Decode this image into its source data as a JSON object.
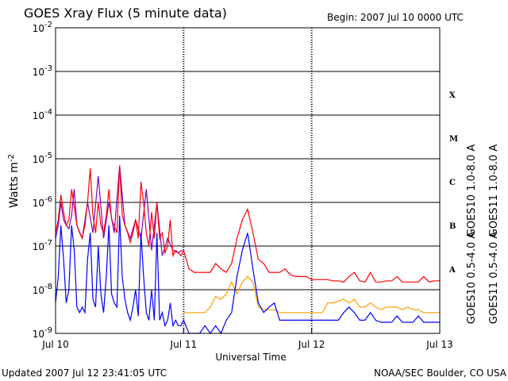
{
  "header": {
    "title": "GOES Xray Flux (5 minute data)",
    "begin": "Begin:  2007 Jul 10 0000 UTC"
  },
  "footer": {
    "updated": "Updated 2007 Jul 12 23:41:05 UTC",
    "source": "NOAA/SEC Boulder, CO USA"
  },
  "chart_data": {
    "type": "line",
    "title": "GOES Xray Flux (5 minute data)",
    "xlabel": "Universal Time",
    "ylabel": "Watts m",
    "ylabel_sup": "-2",
    "yscale": "log",
    "ylim": [
      1e-09,
      0.01
    ],
    "xlim_hours": [
      0,
      72
    ],
    "y_ticks": [
      {
        "base": "10",
        "exp": "-9",
        "value": 1e-09
      },
      {
        "base": "10",
        "exp": "-8",
        "value": 1e-08
      },
      {
        "base": "10",
        "exp": "-7",
        "value": 1e-07
      },
      {
        "base": "10",
        "exp": "-6",
        "value": 1e-06
      },
      {
        "base": "10",
        "exp": "-5",
        "value": 1e-05
      },
      {
        "base": "10",
        "exp": "-4",
        "value": 0.0001
      },
      {
        "base": "10",
        "exp": "-3",
        "value": 0.001
      },
      {
        "base": "10",
        "exp": "-2",
        "value": 0.01
      }
    ],
    "x_ticks": [
      {
        "label": "Jul 10",
        "hour": 0
      },
      {
        "label": "Jul 11",
        "hour": 24
      },
      {
        "label": "Jul 12",
        "hour": 48
      },
      {
        "label": "Jul 13",
        "hour": 72
      }
    ],
    "flare_classes": [
      {
        "label": "A",
        "value": 3e-08
      },
      {
        "label": "B",
        "value": 3e-07
      },
      {
        "label": "C",
        "value": 3e-06
      },
      {
        "label": "M",
        "value": 3e-05
      },
      {
        "label": "X",
        "value": 0.0003
      }
    ],
    "grid": true,
    "colors": {
      "goes10_long": "#8000c0",
      "goes11_long": "#ff0000",
      "goes10_short": "#ffa000",
      "goes11_short": "#0000ff"
    },
    "series": [
      {
        "name": "GOES10 1.0-8.0 A",
        "color": "#8000c0",
        "x": [
          0,
          0.5,
          1,
          1.5,
          2,
          2.5,
          3,
          3.5,
          4,
          5,
          6,
          7,
          8,
          9,
          10,
          11,
          12,
          13,
          14,
          15,
          16,
          17,
          18,
          19,
          20,
          21,
          22,
          23,
          23.7
        ],
        "y": [
          1.5e-07,
          3e-07,
          1e-06,
          4e-07,
          3e-07,
          2.5e-07,
          5e-07,
          2e-06,
          3e-07,
          1.5e-07,
          1e-06,
          2e-07,
          4e-06,
          1.5e-07,
          1e-06,
          2e-07,
          7e-06,
          3e-07,
          1.5e-07,
          4e-07,
          1.5e-07,
          2e-06,
          8e-08,
          1e-06,
          6e-08,
          1.5e-07,
          8e-08,
          7e-08,
          8e-08
        ]
      },
      {
        "name": "GOES11 1.0-8.0 A",
        "color": "#ff0000",
        "x": [
          0,
          0.5,
          1,
          1.5,
          2,
          2.5,
          3,
          3.5,
          4,
          4.5,
          5,
          5.5,
          6,
          6.5,
          7,
          7.5,
          8,
          8.5,
          9,
          9.5,
          10,
          10.5,
          11,
          11.5,
          12,
          12.5,
          13,
          13.5,
          14,
          14.5,
          15,
          15.5,
          16,
          16.5,
          17,
          17.5,
          18,
          18.5,
          19,
          19.5,
          20,
          20.5,
          21,
          21.5,
          22,
          22.5,
          23,
          23.5,
          24,
          25,
          26,
          27,
          28,
          29,
          30,
          31,
          32,
          33,
          34,
          35,
          36,
          37,
          38,
          39,
          40,
          41,
          42,
          43,
          44,
          45,
          46,
          47,
          48,
          49,
          50,
          51,
          52,
          53,
          54,
          55,
          56,
          57,
          58,
          59,
          60,
          61,
          62,
          63,
          64,
          65,
          66,
          67,
          68,
          69,
          70,
          71,
          72
        ],
        "y": [
          2e-07,
          4e-07,
          1.5e-06,
          6e-07,
          3e-07,
          4e-07,
          2e-06,
          8e-07,
          3e-07,
          2e-07,
          1.5e-07,
          3e-07,
          1e-06,
          6e-06,
          5e-07,
          2e-07,
          1e-06,
          3e-07,
          2e-07,
          5e-07,
          2e-06,
          4e-07,
          3e-07,
          2e-07,
          7e-06,
          5e-07,
          3e-07,
          2e-07,
          1.2e-07,
          2e-07,
          4e-07,
          1.5e-07,
          3e-06,
          1e-06,
          2e-07,
          1e-07,
          6e-07,
          1.5e-07,
          1e-06,
          1.5e-07,
          2e-07,
          7e-08,
          1e-07,
          4e-07,
          6e-08,
          8e-08,
          7e-08,
          6e-08,
          8e-08,
          3e-08,
          2.5e-08,
          2.5e-08,
          2.5e-08,
          2.5e-08,
          4e-08,
          3e-08,
          2.5e-08,
          4e-08,
          1.5e-07,
          4e-07,
          7e-07,
          2e-07,
          5e-08,
          4e-08,
          2.5e-08,
          2.5e-08,
          2.5e-08,
          3e-08,
          2.2e-08,
          2e-08,
          2e-08,
          2e-08,
          1.7e-08,
          1.7e-08,
          1.7e-08,
          1.7e-08,
          1.6e-08,
          1.6e-08,
          1.5e-08,
          2e-08,
          2.5e-08,
          1.6e-08,
          1.5e-08,
          2.5e-08,
          1.5e-08,
          1.5e-08,
          1.6e-08,
          1.6e-08,
          2e-08,
          1.5e-08,
          1.5e-08,
          1.5e-08,
          1.5e-08,
          2e-08,
          1.5e-08,
          1.6e-08,
          1.6e-08
        ]
      },
      {
        "name": "GOES10 0.5-4.0 A",
        "color": "#ffa000",
        "x": [
          24,
          25,
          26,
          27,
          28,
          29,
          30,
          31,
          32,
          33,
          34,
          35,
          36,
          37,
          38,
          39,
          40,
          41,
          42,
          43,
          44,
          45,
          46,
          47,
          48,
          49,
          50,
          51,
          52,
          53,
          54,
          55,
          56,
          57,
          58,
          59,
          60,
          61,
          62,
          63,
          64,
          65,
          66,
          67,
          68,
          69,
          70,
          71,
          72
        ],
        "y": [
          3e-09,
          3e-09,
          3e-09,
          3e-09,
          3e-09,
          4e-09,
          7e-09,
          6e-09,
          8e-09,
          1.5e-08,
          8e-09,
          1.5e-08,
          2e-08,
          1.5e-08,
          4e-09,
          3.5e-09,
          3.5e-09,
          3.5e-09,
          3e-09,
          3e-09,
          3e-09,
          3e-09,
          3e-09,
          3e-09,
          3e-09,
          3e-09,
          3e-09,
          5e-09,
          5e-09,
          5.5e-09,
          6e-09,
          5e-09,
          6e-09,
          4e-09,
          4e-09,
          5e-09,
          4e-09,
          3.5e-09,
          4e-09,
          4e-09,
          4e-09,
          3.5e-09,
          4e-09,
          3.5e-09,
          3.5e-09,
          3e-09,
          3e-09,
          3e-09,
          3e-09
        ]
      },
      {
        "name": "GOES11 0.5-4.0 A",
        "color": "#0000ff",
        "x": [
          0,
          0.5,
          1,
          1.5,
          2,
          2.5,
          3,
          3.5,
          4,
          4.5,
          5,
          5.5,
          6,
          6.5,
          7,
          7.5,
          8,
          8.5,
          9,
          9.5,
          10,
          10.5,
          11,
          11.5,
          12,
          12.5,
          13,
          13.5,
          14,
          14.5,
          15,
          15.5,
          16,
          16.5,
          17,
          17.5,
          18,
          18.5,
          19,
          19.5,
          20,
          20.5,
          21,
          21.5,
          22,
          22.5,
          23,
          23.5,
          24,
          25,
          26,
          27,
          28,
          29,
          30,
          31,
          32,
          33,
          34,
          35,
          36,
          37,
          38,
          39,
          40,
          41,
          42,
          43,
          44,
          45,
          46,
          47,
          48,
          49,
          50,
          51,
          52,
          53,
          54,
          55,
          56,
          57,
          58,
          59,
          60,
          61,
          62,
          63,
          64,
          65,
          66,
          67,
          68,
          69,
          70,
          71,
          72
        ],
        "y": [
          5e-09,
          2e-08,
          3e-07,
          5e-08,
          5e-09,
          1e-08,
          3e-07,
          8e-08,
          4e-09,
          3e-09,
          4e-09,
          3e-09,
          5e-08,
          2e-07,
          6e-09,
          4e-09,
          1e-07,
          8e-09,
          3e-09,
          2e-08,
          3e-07,
          8e-09,
          5e-09,
          4e-09,
          5e-07,
          2e-08,
          6e-09,
          3e-09,
          2e-09,
          4e-09,
          1e-08,
          2.5e-09,
          2e-07,
          2e-08,
          3e-09,
          2e-09,
          1e-08,
          2e-09,
          2e-07,
          2e-09,
          3e-09,
          1.5e-09,
          2e-09,
          5e-09,
          1.5e-09,
          2e-09,
          1.5e-09,
          1.5e-09,
          2e-09,
          1e-09,
          1e-09,
          1e-09,
          1.5e-09,
          1e-09,
          1.5e-09,
          1e-09,
          2e-09,
          3e-09,
          2e-08,
          8e-08,
          2e-07,
          3e-08,
          5e-09,
          3e-09,
          4e-09,
          5e-09,
          2e-09,
          2e-09,
          2e-09,
          2e-09,
          2e-09,
          2e-09,
          2e-09,
          2e-09,
          2e-09,
          2e-09,
          2e-09,
          2e-09,
          3e-09,
          4e-09,
          3e-09,
          2e-09,
          2e-09,
          3e-09,
          2e-09,
          1.8e-09,
          1.8e-09,
          1.8e-09,
          2.5e-09,
          1.8e-09,
          1.8e-09,
          1.8e-09,
          2.5e-09,
          1.8e-09,
          1.8e-09,
          1.8e-09,
          1.8e-09
        ]
      }
    ]
  }
}
